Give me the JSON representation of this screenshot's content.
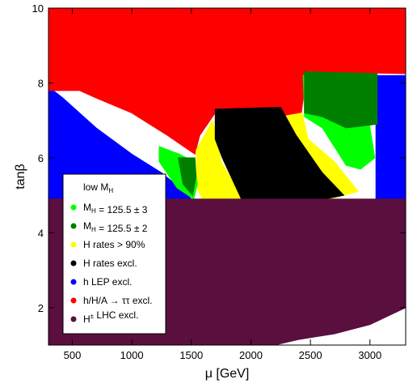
{
  "chart_data": {
    "type": "scatter",
    "title": "",
    "xlabel": "μ [GeV]",
    "ylabel": "tanβ",
    "xlim": [
      300,
      3300
    ],
    "ylim": [
      1,
      10
    ],
    "x_ticks": [
      500,
      1000,
      1500,
      2000,
      2500,
      3000
    ],
    "y_ticks": [
      2,
      4,
      6,
      8,
      10
    ],
    "grid": false,
    "legend": {
      "position": "lower-left",
      "title": {
        "main": "low M",
        "sub": "H"
      },
      "entries": [
        {
          "name": "green-3",
          "parts": [
            {
              "t": "M"
            },
            {
              "t": "H",
              "sub": true
            },
            {
              "t": " = 125.5 ± 3"
            }
          ],
          "color": "#00ff00"
        },
        {
          "name": "green-2",
          "parts": [
            {
              "t": "M"
            },
            {
              "t": "H",
              "sub": true
            },
            {
              "t": " = 125.5 ± 2"
            }
          ],
          "color": "#007f00"
        },
        {
          "name": "h-rates",
          "parts": [
            {
              "t": "H rates > 90%"
            }
          ],
          "color": "#ffff00"
        },
        {
          "name": "h-rates-excl",
          "parts": [
            {
              "t": "H rates excl."
            }
          ],
          "color": "#000000"
        },
        {
          "name": "lep",
          "parts": [
            {
              "t": "h LEP excl."
            }
          ],
          "color": "#0000ff"
        },
        {
          "name": "tautau",
          "parts": [
            {
              "t": "h/H/A  → ττ excl."
            }
          ],
          "color": "#ff0000"
        },
        {
          "name": "lhc",
          "parts": [
            {
              "t": "H"
            },
            {
              "t": "±",
              "sup": true
            },
            {
              "t": " LHC excl."
            }
          ],
          "color": "#5a0f3f"
        }
      ]
    },
    "regions": [
      {
        "name": "h LEP excl.",
        "color": "#0000ff",
        "polygons": [
          [
            [
              300,
              7.9
            ],
            [
              420,
              7.6
            ],
            [
              700,
              6.8
            ],
            [
              1000,
              6.1
            ],
            [
              1250,
              5.6
            ],
            [
              1440,
              5.1
            ],
            [
              1500,
              4.9
            ],
            [
              300,
              4.9
            ]
          ],
          [
            [
              3050,
              8.2
            ],
            [
              3300,
              8.2
            ],
            [
              3300,
              4.9
            ],
            [
              3050,
              4.9
            ]
          ]
        ]
      },
      {
        "name": "h/H/A → ττ excl.",
        "color": "#ff0000",
        "polygons": [
          [
            [
              300,
              10
            ],
            [
              3300,
              10
            ],
            [
              3300,
              8.25
            ],
            [
              2450,
              8.3
            ],
            [
              2440,
              7.6
            ],
            [
              2420,
              7.1
            ],
            [
              1700,
              7.2
            ],
            [
              1570,
              6.6
            ],
            [
              1530,
              6.1
            ],
            [
              1300,
              6.6
            ],
            [
              1000,
              7.2
            ],
            [
              700,
              7.6
            ],
            [
              560,
              7.8
            ],
            [
              300,
              7.8
            ]
          ]
        ]
      },
      {
        "name": "H rates > 90%",
        "color": "#ffff00",
        "polygons": [
          [
            [
              1540,
              6.2
            ],
            [
              1680,
              7.0
            ],
            [
              1750,
              5.9
            ],
            [
              1930,
              4.9
            ],
            [
              1590,
              4.9
            ],
            [
              1550,
              5.2
            ]
          ],
          [
            [
              2260,
              7.1
            ],
            [
              2430,
              7.2
            ],
            [
              2480,
              6.5
            ],
            [
              2700,
              5.9
            ],
            [
              2900,
              5.1
            ],
            [
              2660,
              4.9
            ],
            [
              2480,
              5.5
            ],
            [
              2360,
              6.3
            ]
          ]
        ]
      },
      {
        "name": "M_H = 125.5 ± 3",
        "color": "#00ff00",
        "polygons": [
          [
            [
              1230,
              6.3
            ],
            [
              1400,
              6.1
            ],
            [
              1520,
              5.9
            ],
            [
              1550,
              5.3
            ],
            [
              1520,
              4.9
            ],
            [
              1380,
              5.2
            ],
            [
              1230,
              5.9
            ]
          ],
          [
            [
              2440,
              8.2
            ],
            [
              2500,
              8.3
            ],
            [
              2980,
              8.2
            ],
            [
              2980,
              7.2
            ],
            [
              3000,
              6.8
            ],
            [
              3040,
              6.0
            ],
            [
              2920,
              5.7
            ],
            [
              2800,
              5.8
            ],
            [
              2600,
              6.8
            ],
            [
              2450,
              7.1
            ]
          ]
        ]
      },
      {
        "name": "M_H = 125.5 ± 2",
        "color": "#007f00",
        "polygons": [
          [
            [
              1390,
              6.0
            ],
            [
              1530,
              6.0
            ],
            [
              1540,
              5.5
            ],
            [
              1510,
              5.0
            ],
            [
              1430,
              5.3
            ]
          ],
          [
            [
              2450,
              8.3
            ],
            [
              3060,
              8.25
            ],
            [
              3060,
              6.9
            ],
            [
              2800,
              6.8
            ],
            [
              2600,
              7.1
            ],
            [
              2450,
              7.2
            ]
          ]
        ]
      },
      {
        "name": "H rates excl.",
        "color": "#000000",
        "polygons": [
          [
            [
              1700,
              7.3
            ],
            [
              2250,
              7.35
            ],
            [
              2380,
              6.6
            ],
            [
              2600,
              5.6
            ],
            [
              2780,
              5.0
            ],
            [
              2620,
              4.9
            ],
            [
              1920,
              4.9
            ],
            [
              1760,
              6.0
            ],
            [
              1700,
              6.5
            ]
          ]
        ]
      },
      {
        "name": "H± LHC excl.",
        "color": "#5a0f3f",
        "polygons": [
          [
            [
              300,
              4.9
            ],
            [
              3300,
              4.9
            ],
            [
              3300,
              2.0
            ],
            [
              3000,
              1.55
            ],
            [
              2700,
              1.3
            ],
            [
              2400,
              1.15
            ],
            [
              2200,
              1.0
            ],
            [
              300,
              1.0
            ]
          ]
        ]
      }
    ]
  }
}
